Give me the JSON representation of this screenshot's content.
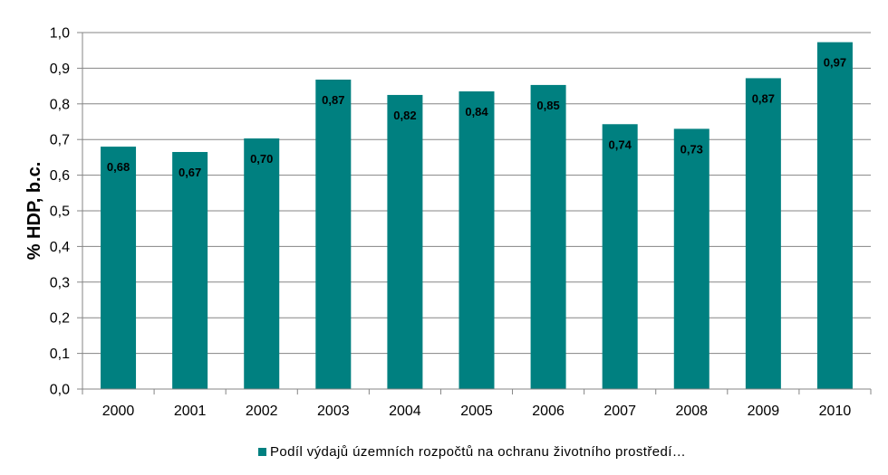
{
  "chart_data": {
    "type": "bar",
    "categories": [
      "2000",
      "2001",
      "2002",
      "2003",
      "2004",
      "2005",
      "2006",
      "2007",
      "2008",
      "2009",
      "2010"
    ],
    "series": [
      {
        "name": "Podíl výdajů územních rozpočtů na ochranu životního prostředí…",
        "values": [
          0.68,
          0.665,
          0.703,
          0.868,
          0.825,
          0.835,
          0.853,
          0.743,
          0.73,
          0.872,
          0.973
        ],
        "labels": [
          "0,68",
          "0,67",
          "0,70",
          "0,87",
          "0,82",
          "0,84",
          "0,85",
          "0,74",
          "0,73",
          "0,87",
          "0,97"
        ],
        "color": "#008080"
      }
    ],
    "title": "",
    "xlabel": "",
    "ylabel": "% HDP, b.c.",
    "ylim": [
      0,
      1.0
    ],
    "yticks": [
      "0,0",
      "0,1",
      "0,2",
      "0,3",
      "0,4",
      "0,5",
      "0,6",
      "0,7",
      "0,8",
      "0,9",
      "1,0"
    ],
    "grid": true,
    "legend_position": "bottom"
  }
}
